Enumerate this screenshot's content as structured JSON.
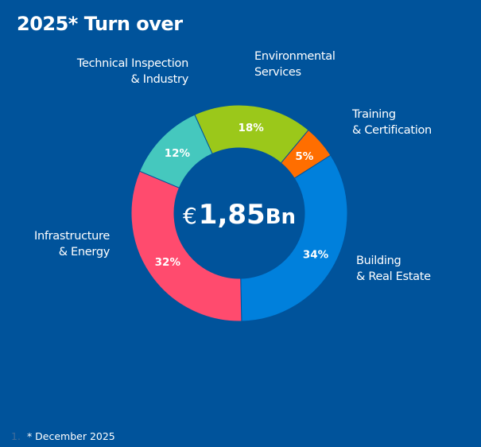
{
  "title": "2025* Turn over",
  "footnote": {
    "number": "1.",
    "text": "* December 2025"
  },
  "chart_data": {
    "type": "pie",
    "donut": true,
    "center_label": {
      "currency": "€",
      "value": "1,85",
      "unit": "Bn"
    },
    "series": [
      {
        "name": "Building\n& Real Estate",
        "value": 34,
        "label": "34%",
        "color": "#0080dc"
      },
      {
        "name": "Infrastructure\n& Energy",
        "value": 32,
        "label": "32%",
        "color": "#ff4b6e"
      },
      {
        "name": "Technical Inspection\n& Industry",
        "value": 12,
        "label": "12%",
        "color": "#45c8be"
      },
      {
        "name": "Environmental\nServices",
        "value": 18,
        "label": "18%",
        "color": "#9bc81a"
      },
      {
        "name": "Training\n& Certification",
        "value": 5,
        "label": "5%",
        "color": "#ff6e00"
      }
    ]
  }
}
